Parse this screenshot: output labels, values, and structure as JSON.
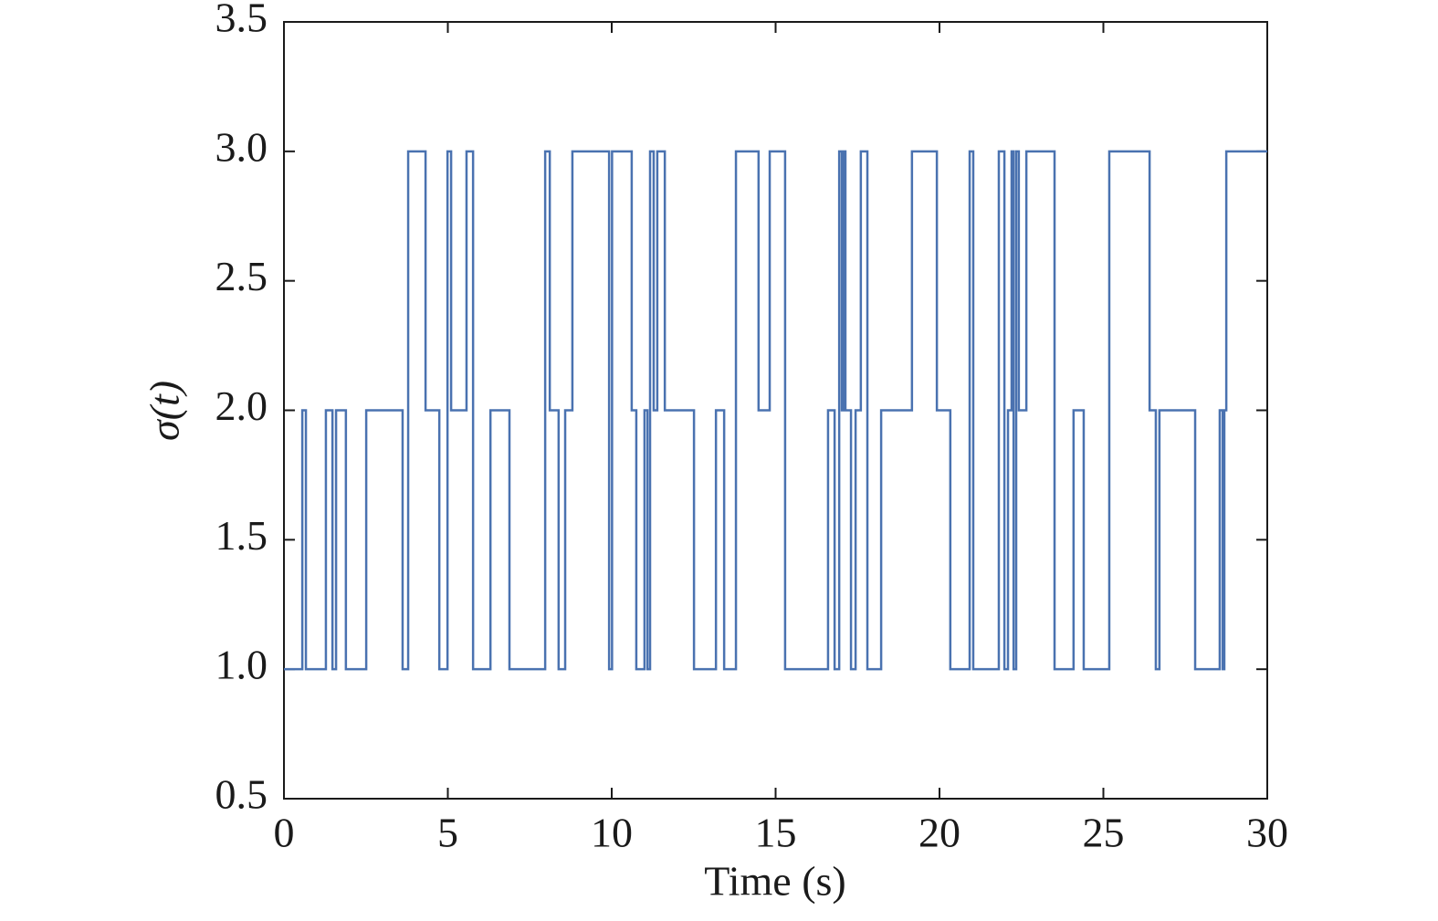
{
  "chart_data": {
    "type": "step",
    "x_label": "Time (s)",
    "y_label": "σ(t)",
    "x": [
      0,
      0.56,
      0.67,
      1.28,
      1.48,
      1.59,
      1.89,
      2.51,
      3.62,
      3.79,
      4.32,
      4.74,
      4.99,
      5.1,
      5.57,
      5.77,
      6.3,
      6.88,
      7.97,
      8.11,
      8.38,
      8.58,
      8.8,
      9.92,
      10.01,
      10.61,
      10.75,
      11.0,
      11.09,
      11.17,
      11.28,
      11.39,
      11.62,
      12.51,
      13.18,
      13.43,
      13.79,
      14.48,
      14.82,
      15.29,
      16.6,
      16.8,
      16.94,
      17.02,
      17.08,
      17.13,
      17.3,
      17.44,
      17.6,
      17.8,
      18.22,
      19.16,
      19.92,
      20.33,
      20.92,
      21.03,
      21.81,
      21.98,
      22.09,
      22.2,
      22.26,
      22.34,
      22.42,
      22.65,
      23.51,
      24.09,
      24.4,
      25.18,
      26.41,
      26.6,
      26.71,
      27.8,
      28.55,
      28.64,
      28.69,
      28.75,
      30
    ],
    "series": [
      {
        "color": "#4a72b0",
        "values": [
          1,
          2,
          1,
          2,
          1,
          2,
          1,
          2,
          1,
          3,
          2,
          1,
          3,
          2,
          3,
          1,
          2,
          1,
          3,
          2,
          1,
          2,
          3,
          1,
          3,
          2,
          1,
          2,
          1,
          3,
          2,
          3,
          2,
          1,
          2,
          1,
          3,
          2,
          3,
          1,
          2,
          1,
          3,
          2,
          3,
          2,
          1,
          2,
          3,
          1,
          2,
          3,
          2,
          1,
          3,
          1,
          3,
          1,
          2,
          3,
          1,
          3,
          2,
          3,
          1,
          2,
          1,
          3,
          2,
          1,
          2,
          1,
          2,
          1,
          2,
          3,
          3
        ]
      }
    ],
    "xlim": [
      0,
      30
    ],
    "xticks": [
      0,
      5,
      10,
      15,
      20,
      25,
      30
    ],
    "ylim": [
      0.5,
      3.5
    ],
    "yticks": [
      0.5,
      {
        "value": 1,
        "label": "1.0"
      },
      1.5,
      {
        "value": 2,
        "label": "2.0"
      },
      2.5,
      {
        "value": 3,
        "label": "3.0"
      },
      3.5
    ]
  }
}
